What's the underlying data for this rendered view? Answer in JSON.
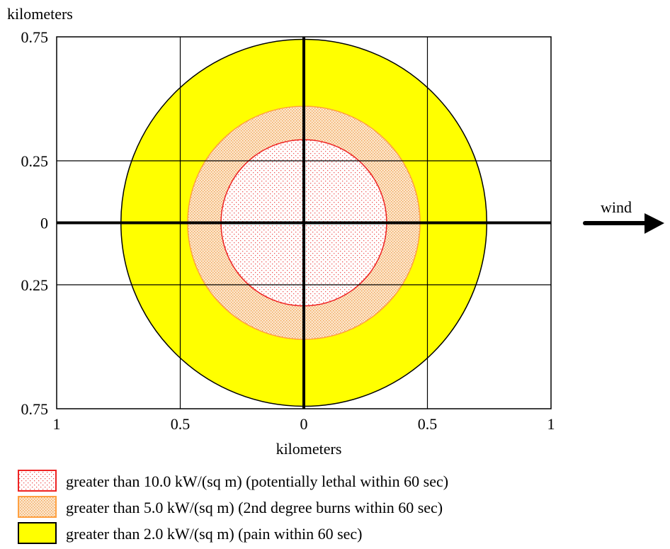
{
  "chart_data": {
    "type": "area",
    "title": "",
    "xlabel": "kilometers",
    "ylabel": "kilometers",
    "xlim": [
      -1,
      1
    ],
    "ylim": [
      -0.75,
      0.75
    ],
    "x_ticks": [
      {
        "value": -1,
        "label": "1"
      },
      {
        "value": -0.5,
        "label": "0.5"
      },
      {
        "value": 0,
        "label": "0"
      },
      {
        "value": 0.5,
        "label": "0.5"
      },
      {
        "value": 1,
        "label": "1"
      }
    ],
    "y_ticks": [
      {
        "value": 0.75,
        "label": "0.75"
      },
      {
        "value": 0.25,
        "label": "0.25"
      },
      {
        "value": 0,
        "label": "0"
      },
      {
        "value": -0.25,
        "label": "0.25"
      },
      {
        "value": -0.75,
        "label": "0.75"
      }
    ],
    "grid": true,
    "wind_label": "wind",
    "zones": [
      {
        "threshold_kw_per_sq_m": 2.0,
        "radius_km": 0.74,
        "fill": "#ffff00",
        "stroke": "#000000",
        "pattern": "solid",
        "legend": "greater than 2.0 kW/(sq m) (pain within 60 sec)"
      },
      {
        "threshold_kw_per_sq_m": 5.0,
        "radius_km": 0.47,
        "fill": "#fbe3c6",
        "stroke": "#ffa040",
        "pattern": "dots-orange",
        "legend": "greater than 5.0 kW/(sq m) (2nd degree burns within 60 sec)"
      },
      {
        "threshold_kw_per_sq_m": 10.0,
        "radius_km": 0.335,
        "fill": "#ffffff",
        "stroke": "#ee2222",
        "pattern": "dots-red",
        "legend": "greater than 10.0 kW/(sq m) (potentially lethal within 60 sec)"
      }
    ],
    "legend_placement": "bottom"
  }
}
